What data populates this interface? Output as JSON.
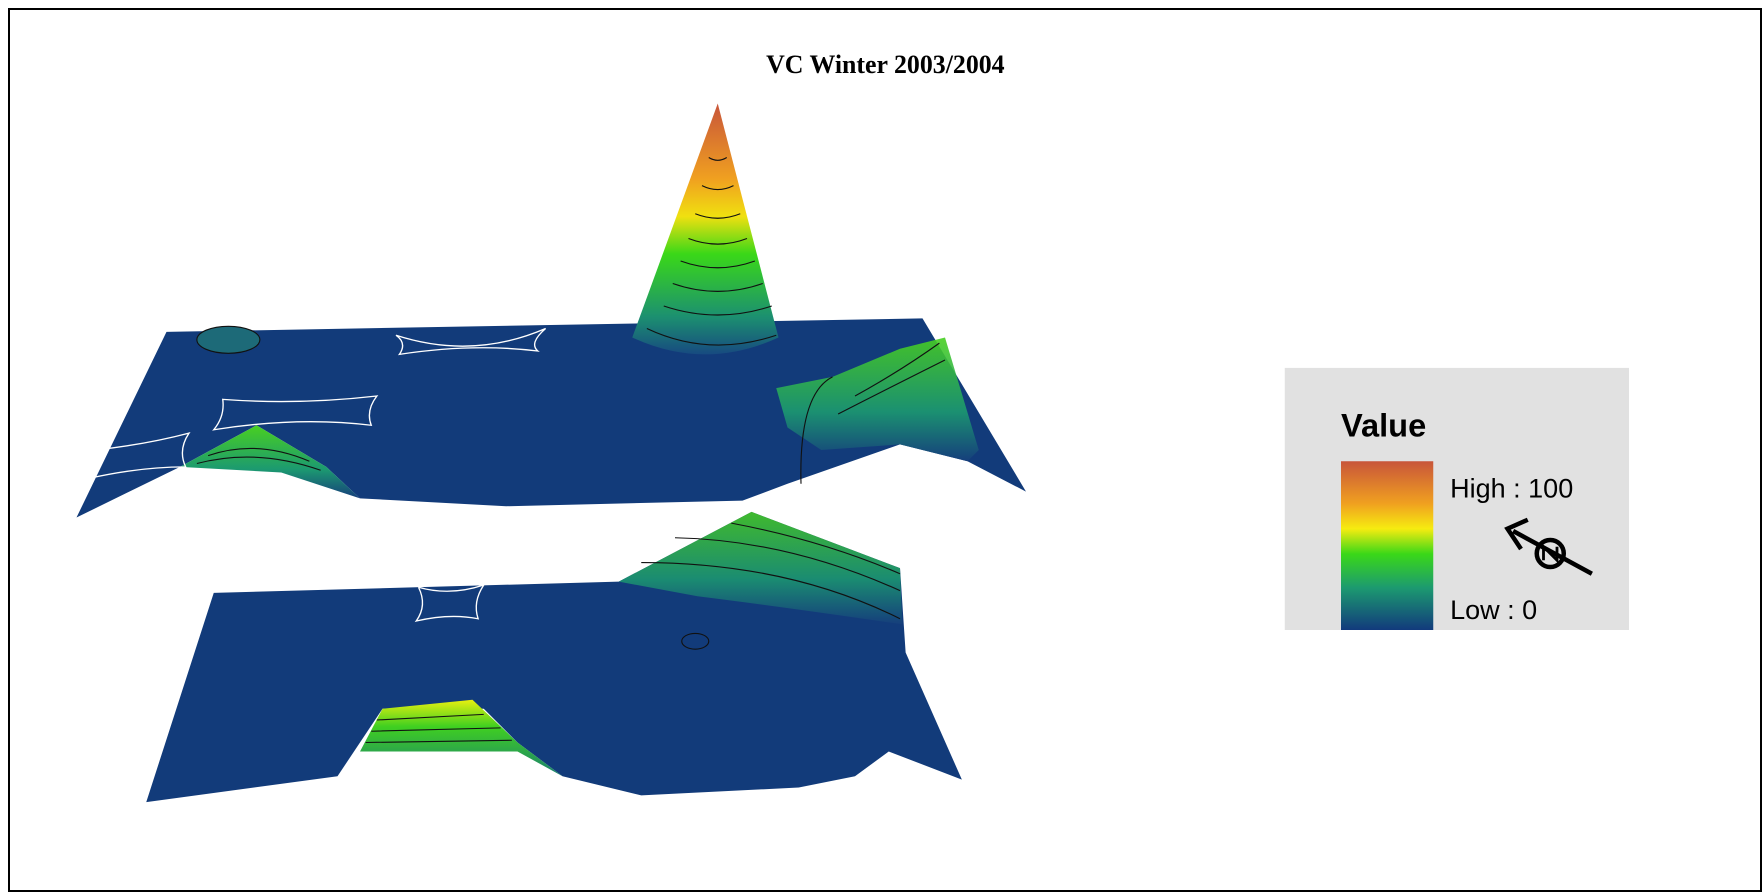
{
  "title": "VC Winter 2003/2004",
  "legend": {
    "title": "Value",
    "high": "High : 100",
    "low": "Low : 0"
  }
}
